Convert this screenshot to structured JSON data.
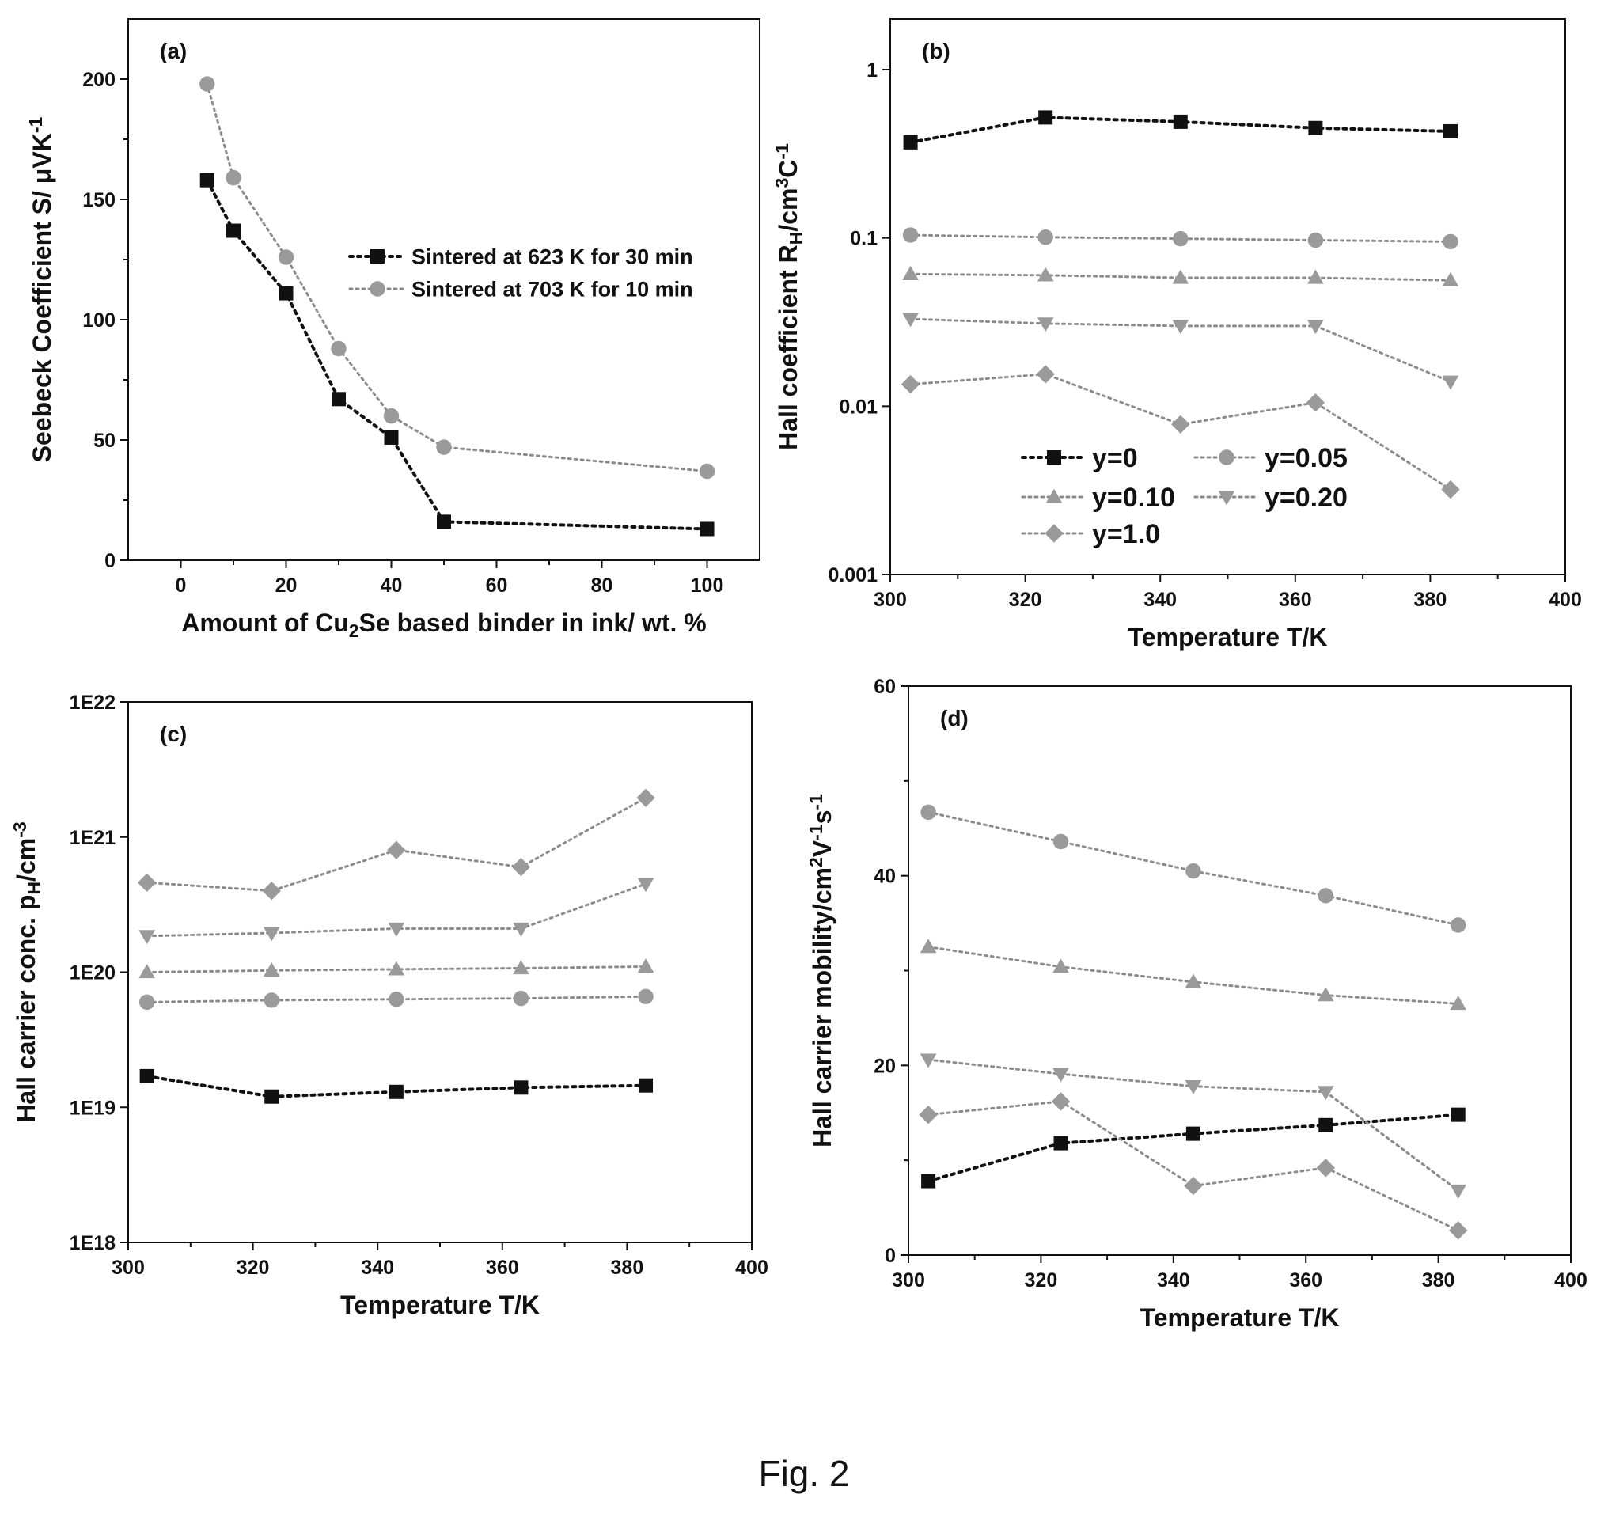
{
  "figure": {
    "caption": "Fig. 2"
  },
  "colors": {
    "black_series": "#111111",
    "grey_series": "#8c8c8c",
    "grey_marker": "#9a9a9a"
  },
  "chart_data": [
    {
      "panel": "(a)",
      "type": "line",
      "xlabel": "Amount of Cu2Se based binder in ink/ wt. %",
      "ylabel": "Seebeck Coefficient S/ μVK-1",
      "xlim": [
        -10,
        110
      ],
      "ylim": [
        0,
        225
      ],
      "xticks": [
        0,
        20,
        40,
        60,
        80,
        100
      ],
      "yticks": [
        0,
        50,
        100,
        150,
        200
      ],
      "legend_position": "center-right",
      "series": [
        {
          "name": "Sintered at 623 K for 30 min",
          "marker": "square",
          "color": "black",
          "x": [
            5,
            10,
            20,
            30,
            40,
            50,
            100
          ],
          "y": [
            158,
            137,
            111,
            67,
            51,
            16,
            13
          ]
        },
        {
          "name": "Sintered at 703 K for 10 min",
          "marker": "circle",
          "color": "grey",
          "x": [
            5,
            10,
            20,
            30,
            40,
            50,
            100
          ],
          "y": [
            198,
            159,
            126,
            88,
            60,
            47,
            37
          ]
        }
      ]
    },
    {
      "panel": "(b)",
      "type": "line",
      "xlabel": "Temperature T/K",
      "ylabel": "Hall coefficient RH/cm3C-1",
      "xlim": [
        300,
        400
      ],
      "ylim": [
        0.001,
        2
      ],
      "yscale": "log",
      "xticks": [
        300,
        320,
        340,
        360,
        380,
        400
      ],
      "yticks": [
        0.001,
        0.01,
        0.1,
        1
      ],
      "ytick_labels": [
        "0.001",
        "0.01",
        "0.1",
        "1"
      ],
      "legend_position": "bottom-center",
      "series": [
        {
          "name": "y=0",
          "marker": "square",
          "color": "black",
          "x": [
            303,
            323,
            343,
            363,
            383
          ],
          "y": [
            0.37,
            0.52,
            0.49,
            0.45,
            0.43
          ]
        },
        {
          "name": "y=0.05",
          "marker": "circle",
          "color": "grey",
          "x": [
            303,
            323,
            343,
            363,
            383
          ],
          "y": [
            0.104,
            0.101,
            0.099,
            0.097,
            0.095
          ]
        },
        {
          "name": "y=0.10",
          "marker": "triangle-up",
          "color": "grey",
          "x": [
            303,
            323,
            343,
            363,
            383
          ],
          "y": [
            0.061,
            0.06,
            0.058,
            0.058,
            0.056
          ]
        },
        {
          "name": "y=0.20",
          "marker": "triangle-down",
          "color": "grey",
          "x": [
            303,
            323,
            343,
            363,
            383
          ],
          "y": [
            0.033,
            0.031,
            0.03,
            0.03,
            0.014
          ]
        },
        {
          "name": "y=1.0",
          "marker": "diamond",
          "color": "grey",
          "x": [
            303,
            323,
            343,
            363,
            383
          ],
          "y": [
            0.0135,
            0.0155,
            0.0078,
            0.0105,
            0.0032
          ]
        }
      ]
    },
    {
      "panel": "(c)",
      "type": "line",
      "xlabel": "Temperature T/K",
      "ylabel": "Hall carrier conc. pH/cm-3",
      "xlim": [
        300,
        400
      ],
      "ylim": [
        1e+18,
        1e+22
      ],
      "yscale": "log",
      "xticks": [
        300,
        320,
        340,
        360,
        380,
        400
      ],
      "yticks": [
        1e+18,
        1e+19,
        1e+20,
        1e+21,
        1e+22
      ],
      "ytick_labels": [
        "1E18",
        "1E19",
        "1E20",
        "1E21",
        "1E22"
      ],
      "series": [
        {
          "marker": "square",
          "color": "black",
          "x": [
            303,
            323,
            343,
            363,
            383
          ],
          "y": [
            1.7e+19,
            1.2e+19,
            1.3e+19,
            1.4e+19,
            1.45e+19
          ]
        },
        {
          "marker": "circle",
          "color": "grey",
          "x": [
            303,
            323,
            343,
            363,
            383
          ],
          "y": [
            6e+19,
            6.2e+19,
            6.3e+19,
            6.4e+19,
            6.6e+19
          ]
        },
        {
          "marker": "triangle-up",
          "color": "grey",
          "x": [
            303,
            323,
            343,
            363,
            383
          ],
          "y": [
            1e+20,
            1.03e+20,
            1.05e+20,
            1.07e+20,
            1.1e+20
          ]
        },
        {
          "marker": "triangle-down",
          "color": "grey",
          "x": [
            303,
            323,
            343,
            363,
            383
          ],
          "y": [
            1.85e+20,
            1.95e+20,
            2.1e+20,
            2.1e+20,
            4.5e+20
          ]
        },
        {
          "marker": "diamond",
          "color": "grey",
          "x": [
            303,
            323,
            343,
            363,
            383
          ],
          "y": [
            4.6e+20,
            4e+20,
            8e+20,
            6e+20,
            1.95e+21
          ]
        }
      ]
    },
    {
      "panel": "(d)",
      "type": "line",
      "xlabel": "Temperature T/K",
      "ylabel": "Hall carrier mobility/cm2V-1s-1",
      "xlim": [
        300,
        400
      ],
      "ylim": [
        0,
        60
      ],
      "xticks": [
        300,
        320,
        340,
        360,
        380,
        400
      ],
      "yticks": [
        0,
        20,
        40,
        60
      ],
      "series": [
        {
          "marker": "square",
          "color": "black",
          "x": [
            303,
            323,
            343,
            363,
            383
          ],
          "y": [
            7.8,
            11.8,
            12.8,
            13.7,
            14.8
          ]
        },
        {
          "marker": "circle",
          "color": "grey",
          "x": [
            303,
            323,
            343,
            363,
            383
          ],
          "y": [
            46.7,
            43.6,
            40.5,
            37.9,
            34.8
          ]
        },
        {
          "marker": "triangle-up",
          "color": "grey",
          "x": [
            303,
            323,
            343,
            363,
            383
          ],
          "y": [
            32.5,
            30.4,
            28.8,
            27.4,
            26.5
          ]
        },
        {
          "marker": "triangle-down",
          "color": "grey",
          "x": [
            303,
            323,
            343,
            363,
            383
          ],
          "y": [
            20.6,
            19.1,
            17.8,
            17.2,
            6.8
          ]
        },
        {
          "marker": "diamond",
          "color": "grey",
          "x": [
            303,
            323,
            343,
            363,
            383
          ],
          "y": [
            14.8,
            16.2,
            7.3,
            9.2,
            2.6
          ]
        }
      ]
    }
  ]
}
